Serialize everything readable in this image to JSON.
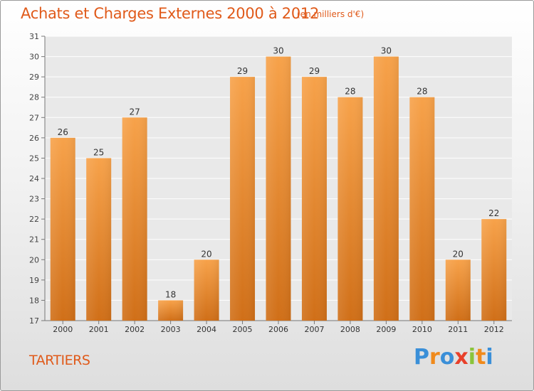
{
  "header": {
    "title": "Achats et Charges Externes 2000 à 2012",
    "subtitle": "(en milliers d'€)"
  },
  "footer": {
    "commune": "TARTIERS",
    "logo": [
      "P",
      "r",
      "o",
      "x",
      "i",
      "t",
      "i"
    ]
  },
  "colors": {
    "bar_top": "#f7a24a",
    "bar_bottom": "#d06f18",
    "title": "#e05a1a"
  },
  "chart_data": {
    "type": "bar",
    "title": "Achats et Charges Externes 2000 à 2012",
    "subtitle": "(en milliers d'€)",
    "xlabel": "",
    "ylabel": "",
    "categories": [
      "2000",
      "2001",
      "2002",
      "2003",
      "2004",
      "2005",
      "2006",
      "2007",
      "2008",
      "2009",
      "2010",
      "2011",
      "2012"
    ],
    "values": [
      26,
      25,
      27,
      18,
      20,
      29,
      30,
      29,
      28,
      30,
      28,
      20,
      22
    ],
    "ylim": [
      17,
      31
    ],
    "yticks": [
      17,
      18,
      19,
      20,
      21,
      22,
      23,
      24,
      25,
      26,
      27,
      28,
      29,
      30,
      31
    ],
    "grid": true,
    "legend": "none"
  }
}
